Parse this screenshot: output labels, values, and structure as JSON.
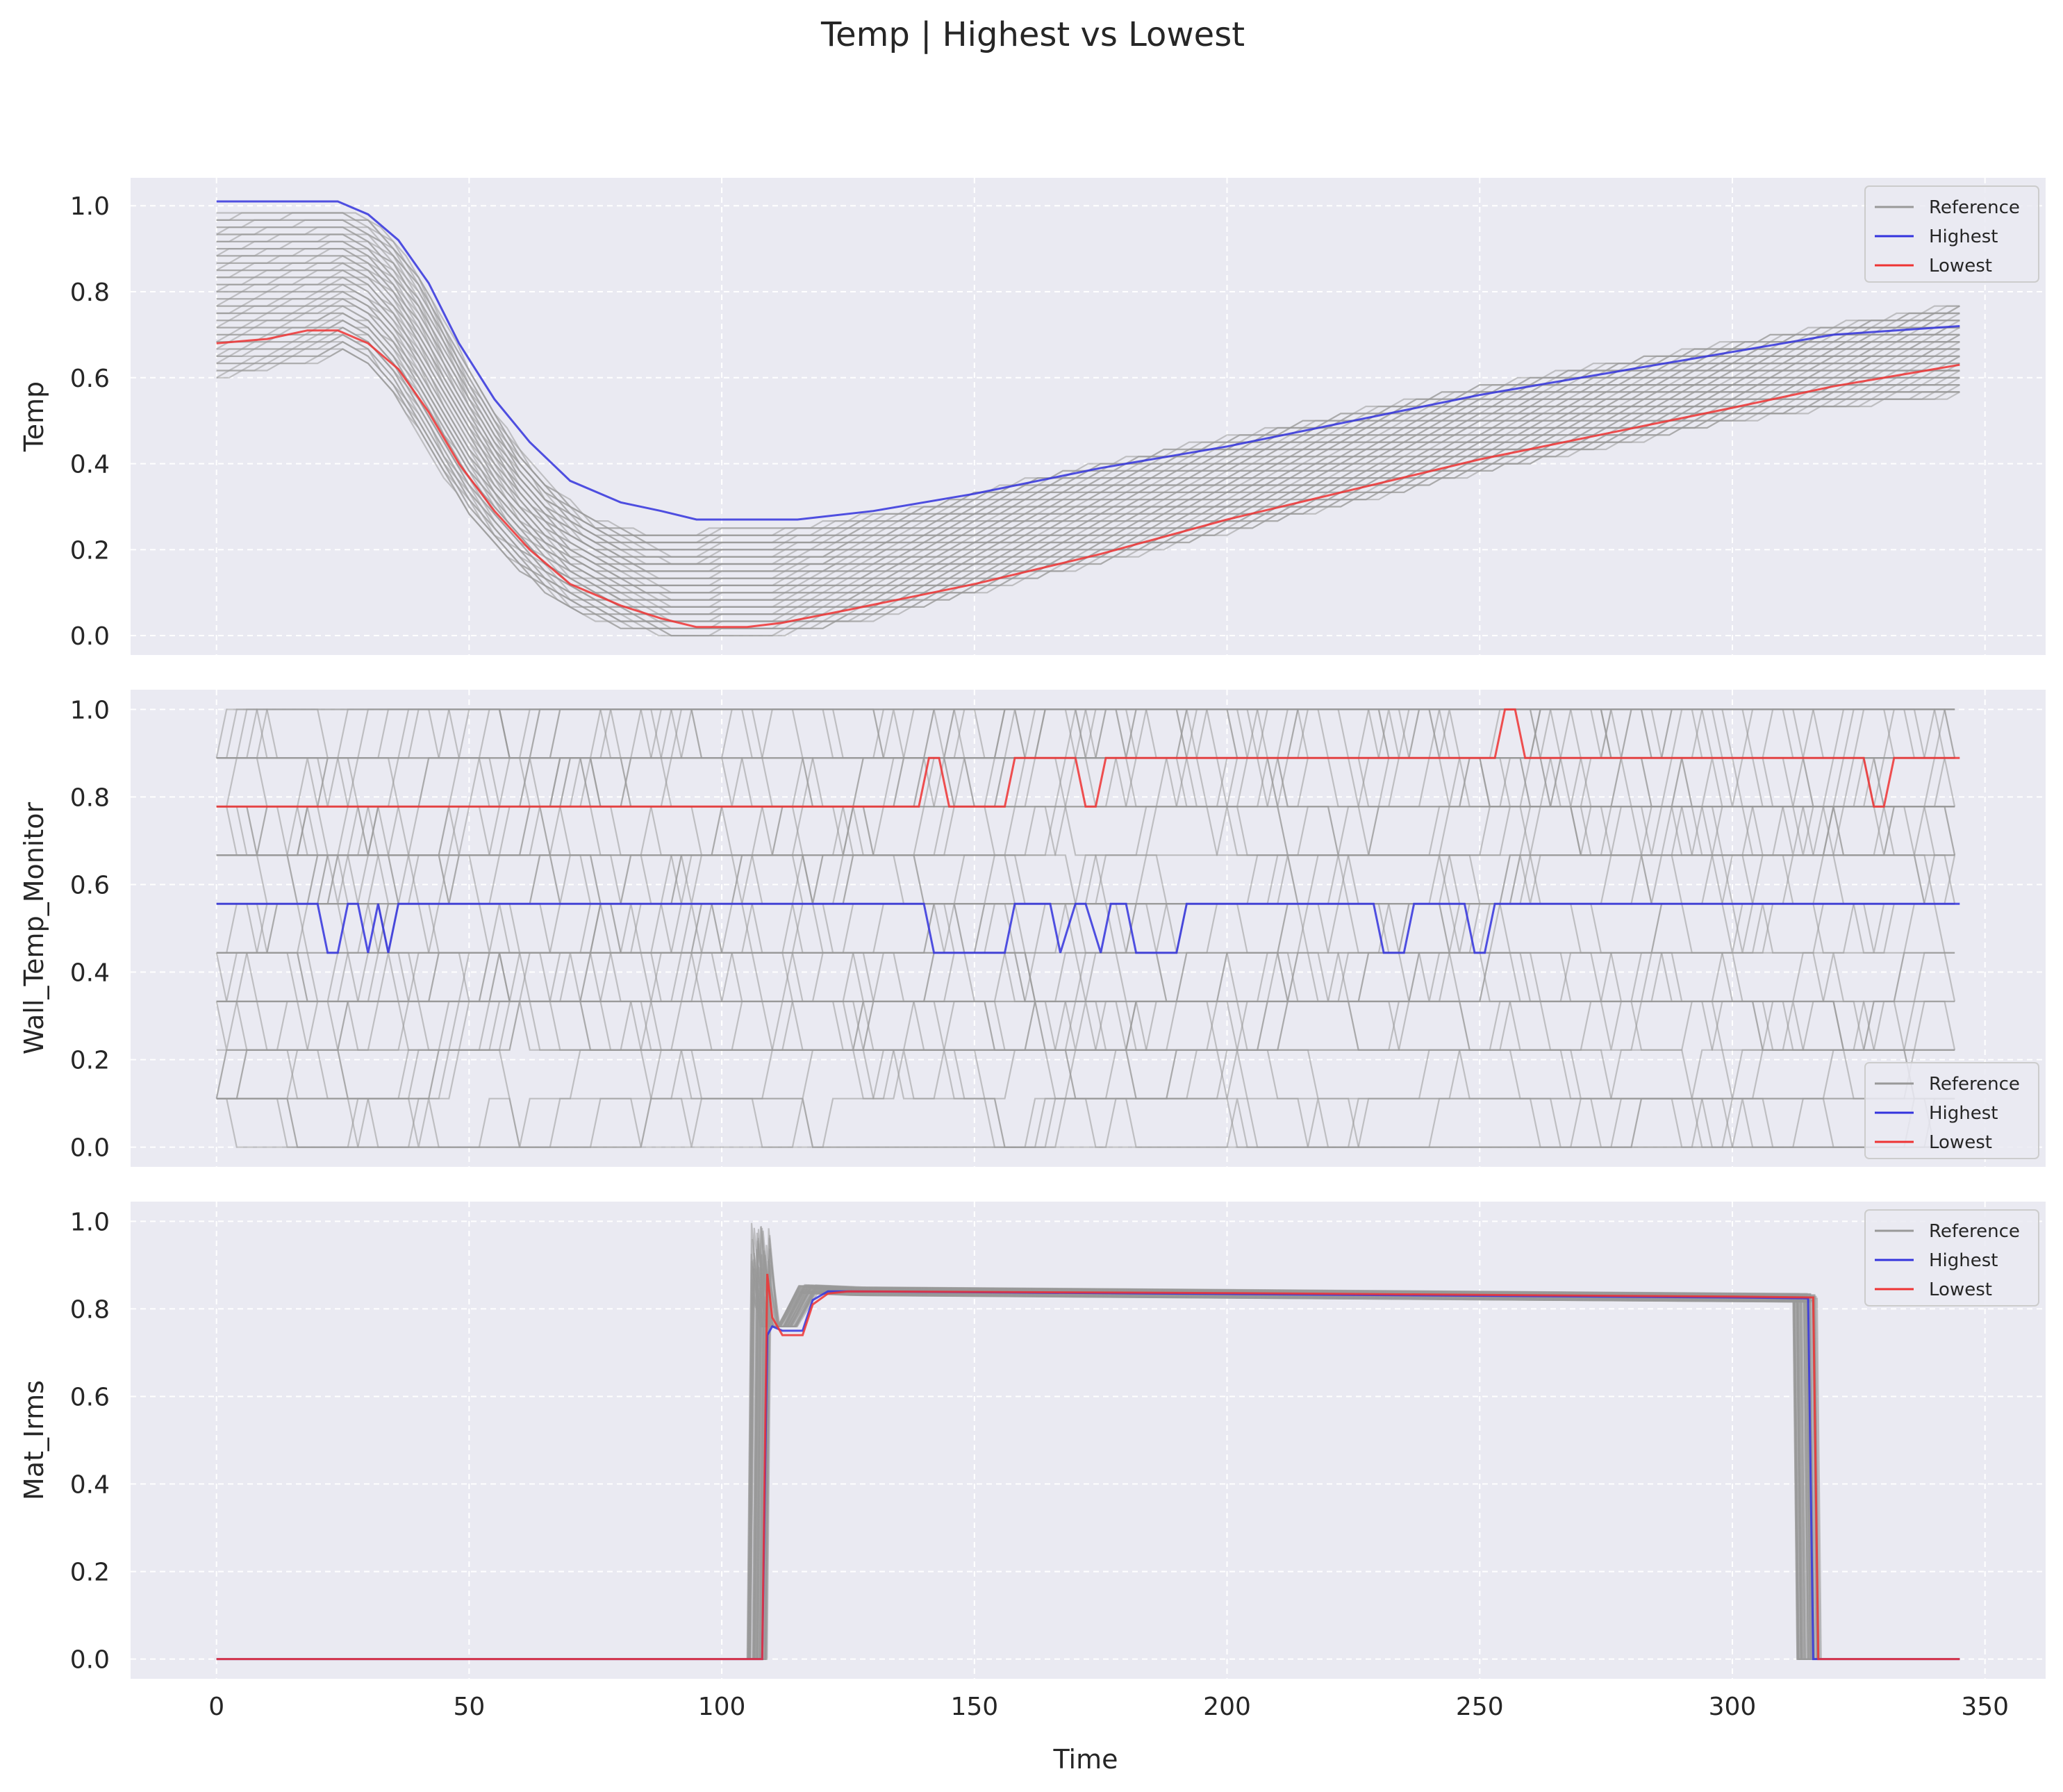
{
  "figure": {
    "title": "Temp | Highest vs Lowest",
    "xlabel": "Time"
  },
  "colors": {
    "panel_background": "#eaeaf2",
    "grid": "#ffffff",
    "reference": "#999999",
    "highest": "#3333dd",
    "lowest": "#ee3333"
  },
  "chart_data": [
    {
      "type": "line",
      "ylabel": "Temp",
      "xlim": [
        -17,
        362
      ],
      "ylim": [
        -0.045,
        1.065
      ],
      "x_ticks": [
        0,
        50,
        100,
        150,
        200,
        250,
        300,
        350
      ],
      "y_ticks": [
        0.0,
        0.2,
        0.4,
        0.6,
        0.8,
        1.0
      ],
      "grid": true,
      "legend": {
        "position": "upper-right",
        "entries": [
          "Reference",
          "Highest",
          "Lowest"
        ]
      },
      "series": [
        {
          "name": "Highest",
          "x": [
            0,
            24,
            30,
            36,
            42,
            48,
            55,
            62,
            70,
            80,
            88,
            95,
            105,
            115,
            130,
            150,
            175,
            200,
            225,
            250,
            275,
            300,
            320,
            345
          ],
          "y": [
            1.01,
            1.01,
            0.98,
            0.92,
            0.82,
            0.68,
            0.55,
            0.45,
            0.36,
            0.31,
            0.29,
            0.27,
            0.27,
            0.27,
            0.29,
            0.33,
            0.39,
            0.44,
            0.5,
            0.56,
            0.61,
            0.66,
            0.7,
            0.72
          ]
        },
        {
          "name": "Lowest",
          "x": [
            0,
            10,
            18,
            24,
            30,
            36,
            42,
            48,
            55,
            62,
            70,
            80,
            88,
            95,
            105,
            112,
            125,
            150,
            175,
            200,
            225,
            250,
            275,
            300,
            320,
            345
          ],
          "y": [
            0.68,
            0.69,
            0.71,
            0.71,
            0.68,
            0.62,
            0.52,
            0.4,
            0.29,
            0.2,
            0.12,
            0.07,
            0.04,
            0.02,
            0.02,
            0.03,
            0.06,
            0.12,
            0.19,
            0.27,
            0.34,
            0.41,
            0.47,
            0.53,
            0.58,
            0.63
          ]
        }
      ],
      "reference_band": {
        "x": [
          0,
          20,
          25,
          30,
          35,
          40,
          45,
          50,
          55,
          60,
          65,
          70,
          75,
          80,
          85,
          90,
          95,
          100,
          110,
          120,
          130,
          140,
          150,
          160,
          175,
          200,
          225,
          250,
          275,
          300,
          320,
          345
        ],
        "low": [
          0.6,
          0.64,
          0.66,
          0.63,
          0.56,
          0.47,
          0.37,
          0.28,
          0.21,
          0.15,
          0.1,
          0.06,
          0.04,
          0.02,
          0.01,
          0.0,
          0.0,
          0.0,
          0.0,
          0.02,
          0.04,
          0.07,
          0.1,
          0.13,
          0.17,
          0.24,
          0.31,
          0.38,
          0.44,
          0.5,
          0.53,
          0.56
        ],
        "high": [
          0.98,
          0.99,
          0.99,
          0.97,
          0.92,
          0.84,
          0.73,
          0.62,
          0.52,
          0.43,
          0.36,
          0.31,
          0.27,
          0.25,
          0.24,
          0.24,
          0.24,
          0.25,
          0.25,
          0.26,
          0.28,
          0.3,
          0.33,
          0.36,
          0.4,
          0.46,
          0.52,
          0.58,
          0.63,
          0.68,
          0.72,
          0.77
        ]
      }
    },
    {
      "type": "line",
      "ylabel": "Wall_Temp_Monitor",
      "xlim": [
        -17,
        362
      ],
      "ylim": [
        -0.045,
        1.045
      ],
      "x_ticks": [
        0,
        50,
        100,
        150,
        200,
        250,
        300,
        350
      ],
      "y_ticks": [
        0.0,
        0.2,
        0.4,
        0.6,
        0.8,
        1.0
      ],
      "grid": true,
      "legend": {
        "position": "lower-right",
        "entries": [
          "Reference",
          "Highest",
          "Lowest"
        ]
      },
      "series": [
        {
          "name": "Highest",
          "x": [
            0,
            20,
            22,
            24,
            26,
            28,
            30,
            32,
            34,
            36,
            140,
            142,
            156,
            158,
            165,
            167,
            170,
            172,
            175,
            177,
            180,
            182,
            190,
            192,
            229,
            231,
            235,
            237,
            247,
            249,
            251,
            253,
            345
          ],
          "y": [
            0.556,
            0.556,
            0.444,
            0.444,
            0.556,
            0.556,
            0.444,
            0.556,
            0.444,
            0.556,
            0.556,
            0.444,
            0.444,
            0.556,
            0.556,
            0.444,
            0.556,
            0.556,
            0.444,
            0.556,
            0.556,
            0.444,
            0.444,
            0.556,
            0.556,
            0.444,
            0.444,
            0.556,
            0.556,
            0.444,
            0.444,
            0.556,
            0.556
          ]
        },
        {
          "name": "Lowest",
          "x": [
            0,
            139,
            141,
            143,
            145,
            156,
            158,
            170,
            172,
            174,
            176,
            253,
            255,
            257,
            259,
            326,
            328,
            330,
            332,
            345
          ],
          "y": [
            0.778,
            0.778,
            0.889,
            0.889,
            0.778,
            0.778,
            0.889,
            0.889,
            0.778,
            0.778,
            0.889,
            0.889,
            1.0,
            1.0,
            0.889,
            0.889,
            0.778,
            0.778,
            0.889,
            0.889
          ]
        }
      ],
      "reference_levels": [
        0.0,
        0.111,
        0.222,
        0.333,
        0.444,
        0.556,
        0.667,
        0.778,
        0.889,
        1.0
      ]
    },
    {
      "type": "line",
      "ylabel": "Mat_Irms",
      "xlim": [
        -17,
        362
      ],
      "ylim": [
        -0.045,
        1.045
      ],
      "x_ticks": [
        0,
        50,
        100,
        150,
        200,
        250,
        300,
        350
      ],
      "x_tick_labels": [
        "0",
        "50",
        "100",
        "150",
        "200",
        "250",
        "300",
        "350"
      ],
      "y_ticks": [
        0.0,
        0.2,
        0.4,
        0.6,
        0.8,
        1.0
      ],
      "grid": true,
      "legend": {
        "position": "upper-right",
        "entries": [
          "Reference",
          "Highest",
          "Lowest"
        ]
      },
      "series": [
        {
          "name": "Highest",
          "x": [
            0,
            108,
            109,
            110,
            112,
            116,
            118,
            121,
            125,
            200,
            300,
            315,
            316,
            345
          ],
          "y": [
            0.0,
            0.0,
            0.74,
            0.76,
            0.75,
            0.75,
            0.82,
            0.84,
            0.84,
            0.834,
            0.826,
            0.824,
            0.0,
            0.0
          ]
        },
        {
          "name": "Lowest",
          "x": [
            0,
            108,
            109,
            110,
            112,
            116,
            118,
            121,
            125,
            200,
            300,
            316,
            317,
            345
          ],
          "y": [
            0.0,
            0.0,
            0.88,
            0.78,
            0.74,
            0.74,
            0.81,
            0.835,
            0.84,
            0.836,
            0.828,
            0.826,
            0.0,
            0.0
          ]
        }
      ]
    }
  ]
}
